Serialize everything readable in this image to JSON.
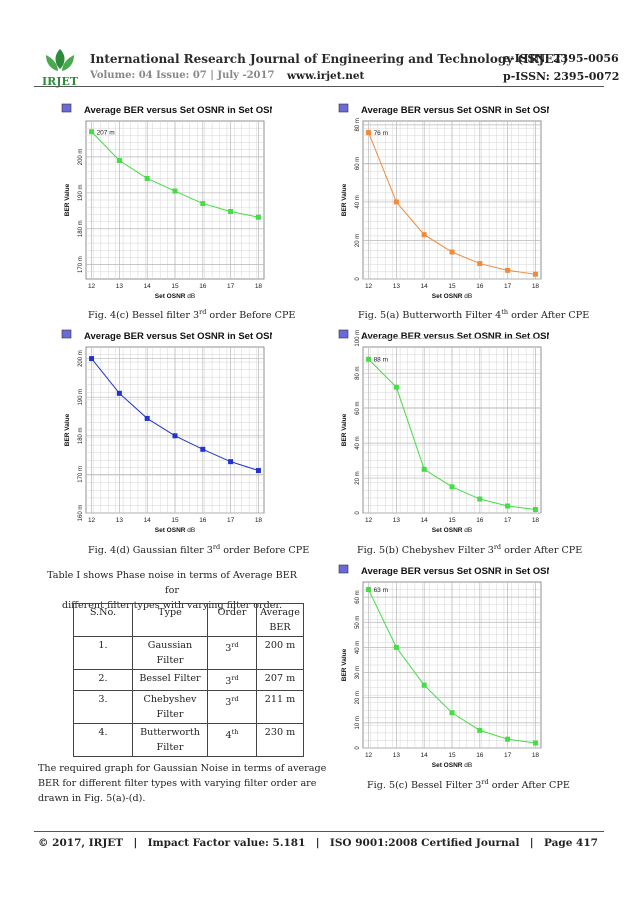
{
  "header": {
    "journal_title": "International Research Journal of Engineering and Technology (IRJET)",
    "e_issn": "e-ISSN: 2395-0056",
    "volume": "Volume: 04 Issue: 07 | July -2017",
    "website": "www.irjet.net",
    "p_issn": "p-ISSN: 2395-0072",
    "logo_text": "IRJET"
  },
  "colors": {
    "green": "#44dd44",
    "orange": "#f08a3c",
    "blue": "#2233cc"
  },
  "chart_data": [
    {
      "id": "fig4c",
      "type": "line",
      "title": "Average BER versus Set OSNR in Set OSNR",
      "xlabel": "Set OSNR",
      "xunit": "dB",
      "ylabel": "BER Value",
      "x": [
        12,
        13,
        14,
        15,
        16,
        17,
        18
      ],
      "y": [
        207,
        199,
        194,
        190.5,
        187,
        184.8,
        183.2
      ],
      "xticks": [
        "12",
        "13",
        "14",
        "15",
        "16",
        "17",
        "18"
      ],
      "yticks": [
        {
          "v": 170,
          "t": "170 m"
        },
        {
          "v": 180,
          "t": "180 m"
        },
        {
          "v": 190,
          "t": "190 m"
        },
        {
          "v": 200,
          "t": "200 m"
        }
      ],
      "ylim": [
        166,
        210
      ],
      "marker_label": "207 m",
      "color": "#44dd44",
      "caption": {
        "prefix": "Fig. 4(c) Bessel filter 3",
        "sup": "rd",
        "suffix": " order Before CPE"
      }
    },
    {
      "id": "fig5a",
      "type": "line",
      "title": "Average BER versus Set OSNR in Set OSNR",
      "xlabel": "Set OSNR",
      "xunit": "dB",
      "ylabel": "BER Value",
      "x": [
        12,
        13,
        14,
        15,
        16,
        17,
        18
      ],
      "y": [
        76,
        40,
        23,
        14,
        8,
        4.5,
        2.5
      ],
      "xticks": [
        "12",
        "13",
        "14",
        "15",
        "16",
        "17",
        "18"
      ],
      "yticks": [
        {
          "v": 0,
          "t": "0"
        },
        {
          "v": 20,
          "t": "20 m"
        },
        {
          "v": 40,
          "t": "40 m"
        },
        {
          "v": 60,
          "t": "60 m"
        },
        {
          "v": 80,
          "t": "80 m"
        }
      ],
      "ylim": [
        0,
        82
      ],
      "marker_label": "76 m",
      "color": "#f08a3c",
      "caption": {
        "prefix": "Fig. 5(a) Butterworth Filter 4",
        "sup": "th",
        "suffix": " order After CPE"
      }
    },
    {
      "id": "fig4d",
      "type": "line",
      "title": "Average BER versus Set OSNR in Set OSNR",
      "xlabel": "Set OSNR",
      "xunit": "dB",
      "ylabel": "BER Value",
      "x": [
        12,
        13,
        14,
        15,
        16,
        17,
        18
      ],
      "y": [
        200,
        191,
        184.5,
        180,
        176.5,
        173.3,
        171
      ],
      "xticks": [
        "12",
        "13",
        "14",
        "15",
        "16",
        "17",
        "18"
      ],
      "yticks": [
        {
          "v": 160,
          "t": "160 m"
        },
        {
          "v": 170,
          "t": "170 m"
        },
        {
          "v": 180,
          "t": "180 m"
        },
        {
          "v": 190,
          "t": "190 m"
        },
        {
          "v": 200,
          "t": "200 m"
        }
      ],
      "ylim": [
        160,
        203
      ],
      "marker_label": "",
      "color": "#2233cc",
      "caption": {
        "prefix": "Fig. 4(d) Gaussian filter 3",
        "sup": "rd",
        "suffix": " order Before CPE"
      }
    },
    {
      "id": "fig5b",
      "type": "line",
      "title": "Average BER versus Set OSNR in Set OSNR",
      "xlabel": "Set OSNR",
      "xunit": "dB",
      "ylabel": "BER Value",
      "x": [
        12,
        13,
        14,
        15,
        16,
        17,
        18
      ],
      "y": [
        88,
        72,
        25,
        15,
        8,
        4,
        2
      ],
      "xticks": [
        "12",
        "13",
        "14",
        "15",
        "16",
        "17",
        "18"
      ],
      "yticks": [
        {
          "v": 0,
          "t": "0"
        },
        {
          "v": 20,
          "t": "20 m"
        },
        {
          "v": 40,
          "t": "40 m"
        },
        {
          "v": 60,
          "t": "60 m"
        },
        {
          "v": 80,
          "t": "80 m"
        },
        {
          "v": 100,
          "t": "100 m"
        }
      ],
      "ylim": [
        0,
        95
      ],
      "marker_label": "88 m",
      "color": "#44dd44",
      "caption": {
        "prefix": "Fig. 5(b) Chebyshev  Filter 3",
        "sup": "rd",
        "suffix": " order After CPE"
      }
    },
    {
      "id": "fig5c",
      "type": "line",
      "title": "Average BER versus Set OSNR in Set OSNR",
      "xlabel": "Set OSNR",
      "xunit": "dB",
      "ylabel": "BER Value",
      "x": [
        12,
        13,
        14,
        15,
        16,
        17,
        18
      ],
      "y": [
        63,
        40,
        25,
        14,
        7,
        3.5,
        2
      ],
      "xticks": [
        "12",
        "13",
        "14",
        "15",
        "16",
        "17",
        "18"
      ],
      "yticks": [
        {
          "v": 0,
          "t": "0"
        },
        {
          "v": 10,
          "t": "10 m"
        },
        {
          "v": 20,
          "t": "20 m"
        },
        {
          "v": 30,
          "t": "30 m"
        },
        {
          "v": 40,
          "t": "40 m"
        },
        {
          "v": 50,
          "t": "50 m"
        },
        {
          "v": 60,
          "t": "60 m"
        }
      ],
      "ylim": [
        0,
        66
      ],
      "marker_label": "63 m",
      "color": "#44dd44",
      "caption": {
        "prefix": "Fig. 5(c) Bessel Filter 3",
        "sup": "rd",
        "suffix": " order After CPE"
      }
    }
  ],
  "intro_text_line1": "Table I shows Phase noise in terms of Average BER for",
  "intro_text_line2": "different filter types with varying filter order.",
  "table": {
    "headers": [
      "S.No.",
      "Type",
      "Order",
      "Average BER"
    ],
    "rows": [
      {
        "sno": "1.",
        "type": "Gaussian Filter",
        "order": "3",
        "order_sup": "rd",
        "ber": "200 m"
      },
      {
        "sno": "2.",
        "type": "Bessel Filter",
        "order": "3",
        "order_sup": "rd",
        "ber": "207 m"
      },
      {
        "sno": "3.",
        "type": "Chebyshev Filter",
        "order": "3",
        "order_sup": "rd",
        "ber": "211 m"
      },
      {
        "sno": "4.",
        "type": "Butterworth Filter",
        "order": "4",
        "order_sup": "th",
        "ber": "230 m"
      }
    ]
  },
  "closing_text_line1": "The required graph for Gaussian Noise in terms of average",
  "closing_text_line2": "BER for different filter types with varying filter order are",
  "closing_text_line3": "drawn in Fig. 5(a)-(d).",
  "footer": {
    "copyright": "© 2017, IRJET",
    "sep": "|",
    "impact": "Impact Factor value: 5.181",
    "iso": "ISO 9001:2008 Certified Journal",
    "page": "Page 417"
  }
}
